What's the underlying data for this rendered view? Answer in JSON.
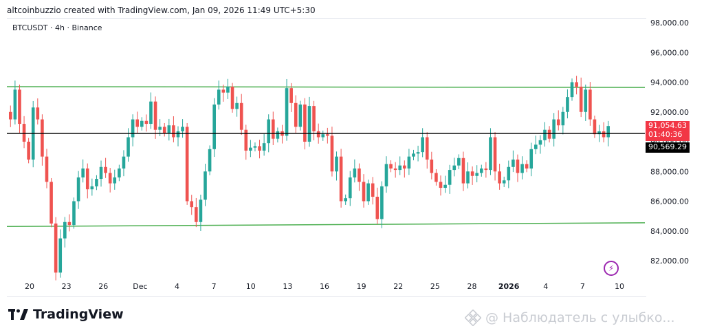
{
  "header": {
    "text": "altcoinbuzzio created with TradingView.com, Jan 09, 2026 11:49 UTC+5:30"
  },
  "symbol": {
    "text": "BTCUSDT · 4h · Binance"
  },
  "footer": {
    "brand": "TradingView",
    "watermark": "@ Наблюдатель с улыбко..."
  },
  "colors": {
    "up": "#26a69a",
    "down": "#ef5350",
    "channel": "#4caf50",
    "level": "#000000",
    "price_tag": "#f23645",
    "level_tag": "#000000"
  },
  "price_tag": {
    "price": "91,054.63",
    "countdown": "01:40:36"
  },
  "level_tag": {
    "price": "90,569.29"
  },
  "chart_data": {
    "type": "candlestick",
    "title": "BTCUSDT · 4h · Binance",
    "ylim": [
      80800,
      98800
    ],
    "y_ticks": [
      82000,
      84000,
      86000,
      88000,
      90000,
      92000,
      94000,
      96000,
      98000
    ],
    "y_tick_labels": [
      "82,000.00",
      "84,000.00",
      "86,000.00",
      "88,000.00",
      "90,000.00",
      "92,000.00",
      "94,000.00",
      "96,000.00",
      "98,000.00"
    ],
    "x_ticks": [
      {
        "label": "20",
        "bold": false
      },
      {
        "label": "23",
        "bold": false
      },
      {
        "label": "26",
        "bold": false
      },
      {
        "label": "Dec",
        "bold": false
      },
      {
        "label": "4",
        "bold": false
      },
      {
        "label": "7",
        "bold": false
      },
      {
        "label": "10",
        "bold": false
      },
      {
        "label": "13",
        "bold": false
      },
      {
        "label": "16",
        "bold": false
      },
      {
        "label": "19",
        "bold": false
      },
      {
        "label": "22",
        "bold": false
      },
      {
        "label": "25",
        "bold": false
      },
      {
        "label": "28",
        "bold": false
      },
      {
        "label": "2026",
        "bold": true
      },
      {
        "label": "4",
        "bold": false
      },
      {
        "label": "7",
        "bold": false
      },
      {
        "label": "10",
        "bold": false
      }
    ],
    "channel_lines": [
      {
        "name": "upper",
        "y_start": 93700,
        "y_end": 93650
      },
      {
        "name": "lower",
        "y_start": 84300,
        "y_end": 84550
      }
    ],
    "horizontal_level": 90569.29,
    "last_price": 91054.63,
    "price_path": [
      92000,
      91500,
      93500,
      91200,
      90000,
      88800,
      92300,
      91500,
      89000,
      87300,
      84500,
      81200,
      83500,
      84600,
      84400,
      86000,
      87600,
      88200,
      86800,
      87000,
      87500,
      88300,
      87900,
      87200,
      87600,
      88200,
      89000,
      90300,
      91500,
      91000,
      91400,
      91200,
      92700,
      90800,
      91000,
      90600,
      91100,
      90300,
      90700,
      91000,
      86000,
      85600,
      84600,
      86100,
      88000,
      89500,
      92500,
      93500,
      93300,
      93700,
      92200,
      92600,
      90800,
      89400,
      89600,
      89700,
      89400,
      89900,
      91500,
      90200,
      90700,
      90400,
      93600,
      92600,
      91000,
      92500,
      90000,
      92400,
      90700,
      90300,
      90500,
      90400,
      88000,
      89000,
      86000,
      86200,
      87600,
      88200,
      87300,
      86000,
      87200,
      86300,
      84800,
      87000,
      88500,
      88200,
      88100,
      88400,
      88200,
      89000,
      89200,
      89300,
      90300,
      88800,
      87900,
      87300,
      86900,
      87100,
      88100,
      88400,
      88900,
      87200,
      88000,
      87700,
      87900,
      88200,
      88100,
      90300,
      88000,
      87200,
      87400,
      88300,
      88800,
      87900,
      88500,
      88200,
      89500,
      89800,
      90100,
      90800,
      90200,
      91500,
      91100,
      92000,
      93000,
      94000,
      93700,
      92000,
      93500,
      91500,
      90500,
      90700,
      90300,
      91054.63
    ]
  }
}
